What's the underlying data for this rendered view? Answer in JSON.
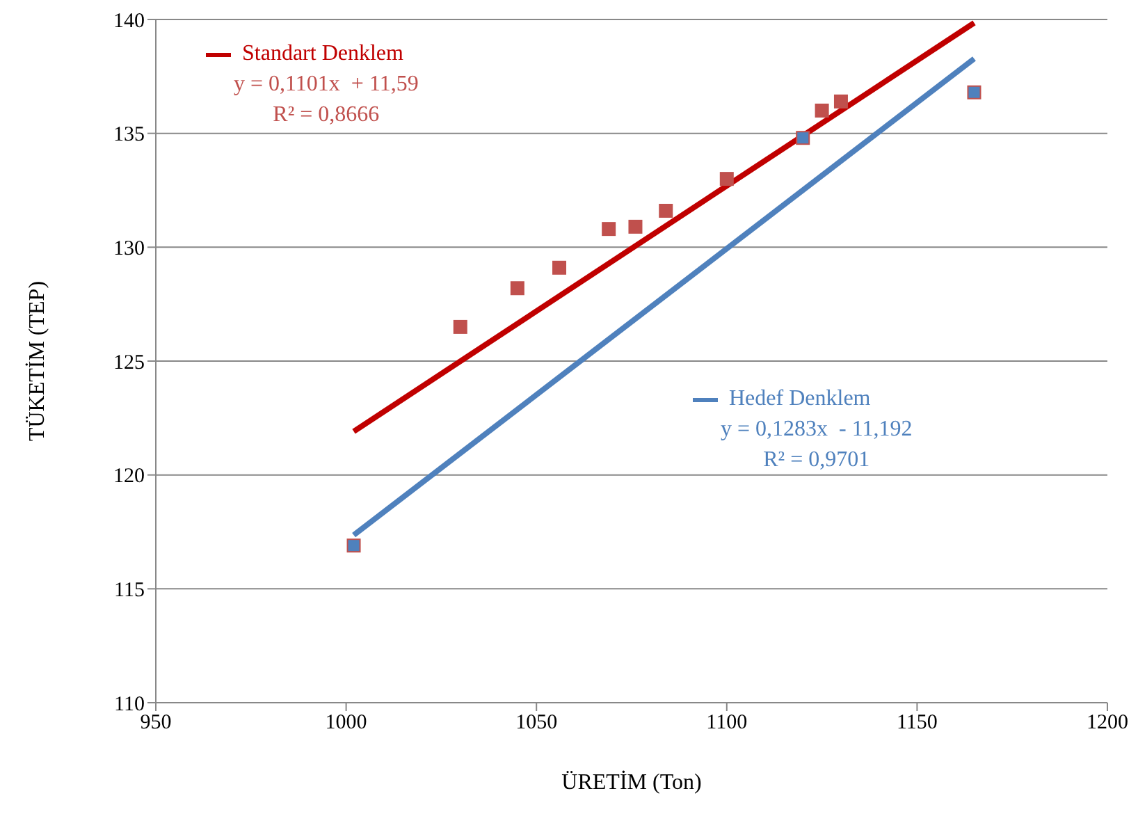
{
  "chart_data": {
    "type": "scatter",
    "xlabel": "ÜRETİM (Ton)",
    "ylabel": "TÜKETİM (TEP)",
    "xlim": [
      950,
      1200
    ],
    "xticks": [
      950,
      1000,
      1050,
      1100,
      1150,
      1200
    ],
    "ylim": [
      110,
      140
    ],
    "yticks": [
      110,
      115,
      120,
      125,
      130,
      135,
      140
    ],
    "grid": "y",
    "marker": "square",
    "legend": "top left",
    "series": [
      {
        "color": "#c0504d",
        "x": [
          1030,
          1045,
          1056,
          1069,
          1076,
          1084,
          1100,
          1125,
          1130
        ],
        "values": [
          126.5,
          128.2,
          129.1,
          130.8,
          130.9,
          131.6,
          133.0,
          136.0,
          136.4
        ]
      },
      {
        "color": "#4f81bd",
        "x": [
          1002,
          1120,
          1165
        ],
        "values": [
          116.9,
          134.8,
          136.8
        ]
      },
      {
        "type": "line",
        "marker": "none",
        "name": "Standart Denklem",
        "color": "#c00000",
        "x": [
          1002,
          1165
        ],
        "values": [
          121.91,
          139.85
        ]
      },
      {
        "type": "line",
        "marker": "none",
        "name": "Hedef Denklem",
        "color": "#4f81bd",
        "x": [
          1002,
          1165
        ],
        "values": [
          117.36,
          138.28
        ]
      }
    ],
    "annotations": [
      "y = 0,1101x  + 11,59\nR² = 0,8666",
      "y = 0,1283x  - 11,192\nR² = 0,9701"
    ]
  }
}
